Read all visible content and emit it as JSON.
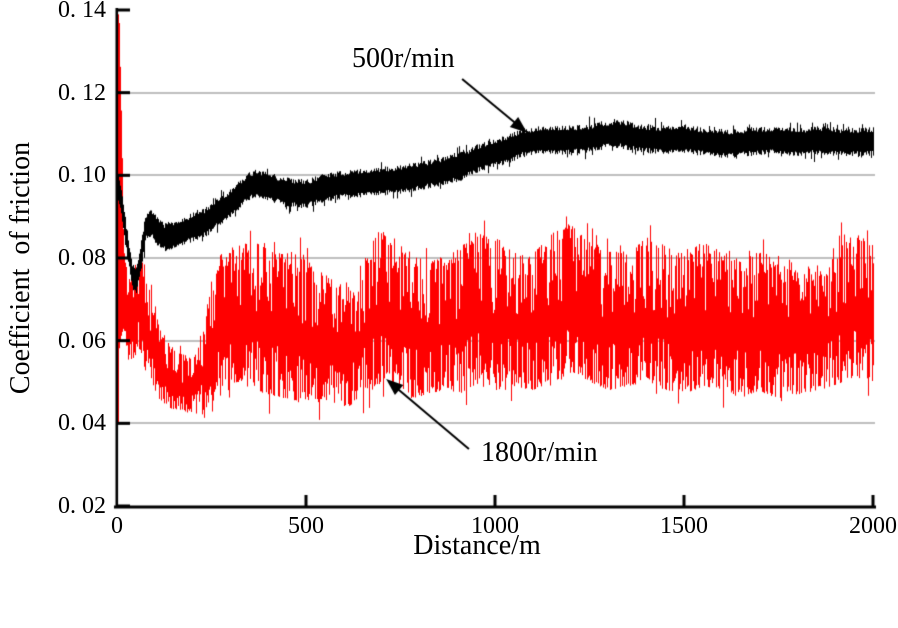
{
  "chart_data": {
    "type": "line",
    "title": "",
    "xlabel": "Distance/m",
    "ylabel": "Coefficient  of friction",
    "xlim": [
      0,
      2000
    ],
    "ylim": [
      0.02,
      0.14
    ],
    "x_ticks": [
      {
        "value": 0,
        "label": "0"
      },
      {
        "value": 500,
        "label": "500"
      },
      {
        "value": 1000,
        "label": "1000"
      },
      {
        "value": 1500,
        "label": "1500"
      },
      {
        "value": 2000,
        "label": "2000"
      }
    ],
    "y_ticks": [
      {
        "value": 0.02,
        "label": "0. 02"
      },
      {
        "value": 0.04,
        "label": "0. 04"
      },
      {
        "value": 0.06,
        "label": "0. 06"
      },
      {
        "value": 0.08,
        "label": "0. 08"
      },
      {
        "value": 0.1,
        "label": "0. 10"
      },
      {
        "value": 0.12,
        "label": "0. 12"
      },
      {
        "value": 0.14,
        "label": "0. 14"
      }
    ],
    "gridline_values": [
      0.04,
      0.06,
      0.08,
      0.1,
      0.12
    ],
    "grid_color": "#7f7f7f",
    "axis_color": "#000000",
    "background": "#ffffff",
    "legend_position": "none (arrowed annotations inside plot)",
    "series": [
      {
        "name": "500r/min",
        "color": "#000000",
        "style": "noisy solid trace, band half-width ~0.003",
        "center": [
          [
            0,
            0.098
          ],
          [
            10,
            0.094
          ],
          [
            25,
            0.084
          ],
          [
            40,
            0.0755
          ],
          [
            50,
            0.0745
          ],
          [
            62,
            0.08
          ],
          [
            75,
            0.0875
          ],
          [
            90,
            0.0885
          ],
          [
            105,
            0.0865
          ],
          [
            125,
            0.085
          ],
          [
            150,
            0.0855
          ],
          [
            170,
            0.0862
          ],
          [
            200,
            0.0875
          ],
          [
            230,
            0.0885
          ],
          [
            260,
            0.0905
          ],
          [
            290,
            0.0925
          ],
          [
            320,
            0.095
          ],
          [
            345,
            0.0972
          ],
          [
            365,
            0.098
          ],
          [
            395,
            0.0975
          ],
          [
            425,
            0.0965
          ],
          [
            460,
            0.0958
          ],
          [
            500,
            0.0955
          ],
          [
            540,
            0.0968
          ],
          [
            580,
            0.0975
          ],
          [
            630,
            0.098
          ],
          [
            690,
            0.0985
          ],
          [
            750,
            0.099
          ],
          [
            810,
            0.1
          ],
          [
            870,
            0.1012
          ],
          [
            910,
            0.1022
          ],
          [
            950,
            0.104
          ],
          [
            990,
            0.1052
          ],
          [
            1030,
            0.1062
          ],
          [
            1070,
            0.1078
          ],
          [
            1120,
            0.1085
          ],
          [
            1180,
            0.1085
          ],
          [
            1240,
            0.1088
          ],
          [
            1290,
            0.1098
          ],
          [
            1330,
            0.11
          ],
          [
            1380,
            0.109
          ],
          [
            1440,
            0.1085
          ],
          [
            1500,
            0.1088
          ],
          [
            1560,
            0.108
          ],
          [
            1620,
            0.1076
          ],
          [
            1680,
            0.1082
          ],
          [
            1740,
            0.1085
          ],
          [
            1800,
            0.108
          ],
          [
            1860,
            0.1085
          ],
          [
            1920,
            0.108
          ],
          [
            2000,
            0.1082
          ]
        ]
      },
      {
        "name": "1800r/min",
        "color": "#ff0000",
        "style": "very noisy band between lo and hi envelopes",
        "lo": [
          [
            0,
            0.02
          ],
          [
            5,
            0.058
          ],
          [
            12,
            0.062
          ],
          [
            18,
            0.06
          ],
          [
            30,
            0.055
          ],
          [
            45,
            0.056
          ],
          [
            60,
            0.058
          ],
          [
            75,
            0.052
          ],
          [
            90,
            0.05
          ],
          [
            110,
            0.046
          ],
          [
            130,
            0.044
          ],
          [
            160,
            0.043
          ],
          [
            200,
            0.042
          ],
          [
            225,
            0.043
          ],
          [
            250,
            0.045
          ],
          [
            280,
            0.047
          ],
          [
            320,
            0.05
          ],
          [
            360,
            0.048
          ],
          [
            400,
            0.047
          ],
          [
            440,
            0.046
          ],
          [
            480,
            0.045
          ],
          [
            520,
            0.046
          ],
          [
            560,
            0.045
          ],
          [
            610,
            0.044
          ],
          [
            660,
            0.047
          ],
          [
            700,
            0.05
          ],
          [
            740,
            0.048
          ],
          [
            780,
            0.046
          ],
          [
            820,
            0.047
          ],
          [
            860,
            0.048
          ],
          [
            900,
            0.047
          ],
          [
            950,
            0.049
          ],
          [
            1000,
            0.048
          ],
          [
            1050,
            0.049
          ],
          [
            1100,
            0.048
          ],
          [
            1150,
            0.05
          ],
          [
            1200,
            0.052
          ],
          [
            1250,
            0.05
          ],
          [
            1300,
            0.048
          ],
          [
            1350,
            0.049
          ],
          [
            1400,
            0.05
          ],
          [
            1450,
            0.048
          ],
          [
            1500,
            0.047
          ],
          [
            1550,
            0.049
          ],
          [
            1600,
            0.048
          ],
          [
            1650,
            0.046
          ],
          [
            1700,
            0.048
          ],
          [
            1750,
            0.045
          ],
          [
            1800,
            0.047
          ],
          [
            1860,
            0.048
          ],
          [
            1920,
            0.05
          ],
          [
            1960,
            0.051
          ],
          [
            2000,
            0.05
          ]
        ],
        "hi": [
          [
            0,
            0.14
          ],
          [
            5,
            0.138
          ],
          [
            12,
            0.11
          ],
          [
            18,
            0.085
          ],
          [
            30,
            0.075
          ],
          [
            45,
            0.078
          ],
          [
            60,
            0.08
          ],
          [
            75,
            0.078
          ],
          [
            90,
            0.072
          ],
          [
            110,
            0.065
          ],
          [
            130,
            0.06
          ],
          [
            160,
            0.057
          ],
          [
            200,
            0.056
          ],
          [
            225,
            0.062
          ],
          [
            250,
            0.075
          ],
          [
            280,
            0.08
          ],
          [
            320,
            0.083
          ],
          [
            360,
            0.084
          ],
          [
            400,
            0.082
          ],
          [
            440,
            0.081
          ],
          [
            480,
            0.082
          ],
          [
            520,
            0.078
          ],
          [
            560,
            0.075
          ],
          [
            610,
            0.074
          ],
          [
            660,
            0.081
          ],
          [
            700,
            0.088
          ],
          [
            740,
            0.084
          ],
          [
            780,
            0.081
          ],
          [
            820,
            0.079
          ],
          [
            860,
            0.08
          ],
          [
            900,
            0.082
          ],
          [
            950,
            0.086
          ],
          [
            1000,
            0.085
          ],
          [
            1050,
            0.082
          ],
          [
            1100,
            0.081
          ],
          [
            1150,
            0.086
          ],
          [
            1200,
            0.088
          ],
          [
            1250,
            0.084
          ],
          [
            1300,
            0.082
          ],
          [
            1350,
            0.081
          ],
          [
            1400,
            0.085
          ],
          [
            1450,
            0.083
          ],
          [
            1500,
            0.081
          ],
          [
            1550,
            0.084
          ],
          [
            1600,
            0.081
          ],
          [
            1650,
            0.079
          ],
          [
            1700,
            0.082
          ],
          [
            1750,
            0.079
          ],
          [
            1800,
            0.077
          ],
          [
            1860,
            0.079
          ],
          [
            1920,
            0.086
          ],
          [
            1960,
            0.085
          ],
          [
            2000,
            0.083
          ]
        ]
      }
    ],
    "annotations": [
      {
        "text": "500r/min",
        "series": "500r/min",
        "arrow_from": [
          913,
          0.1233
        ],
        "arrow_to": [
          1085,
          0.1103
        ]
      },
      {
        "text": "1800r/min",
        "series": "1800r/min",
        "arrow_from": [
          931,
          0.0338
        ],
        "arrow_to": [
          712,
          0.0507
        ]
      }
    ]
  }
}
